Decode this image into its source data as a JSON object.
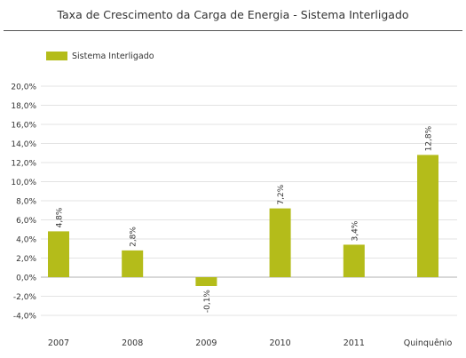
{
  "title": "Taxa de Crescimento da Carga de Energia - Sistema Interligado",
  "colors": {
    "bar": "#b4bc1a",
    "grid": "#e3e3e3",
    "zero_line": "#b0b0b0",
    "text": "#333333"
  },
  "chart_data": {
    "type": "bar",
    "title": "Taxa de Crescimento da Carga de Energia - Sistema Interligado",
    "categories": [
      "2007",
      "2008",
      "2009",
      "2010",
      "2011",
      "Quinquênio"
    ],
    "series": [
      {
        "name": "Sistema Interligado",
        "values": [
          4.8,
          2.8,
          -0.1,
          7.2,
          3.4,
          12.8
        ],
        "value_labels": [
          "4,8%",
          "2,8%",
          "-0,1%",
          "7,2%",
          "3,4%",
          "12,8%"
        ]
      }
    ],
    "ylim": [
      -4.0,
      20.0
    ],
    "yticks": [
      20,
      18,
      16,
      14,
      12,
      10,
      8,
      6,
      4,
      2,
      0,
      -2,
      -4
    ],
    "ytick_labels": [
      "20,0%",
      "18,0%",
      "16,0%",
      "14,0%",
      "12,0%",
      "10,0%",
      "8,0%",
      "6,0%",
      "4,0%",
      "2,0%",
      "0,0%",
      "-2,0%",
      "-4,0%"
    ],
    "xlabel": "",
    "ylabel": "",
    "grid": true,
    "legend_position": "top-left"
  }
}
